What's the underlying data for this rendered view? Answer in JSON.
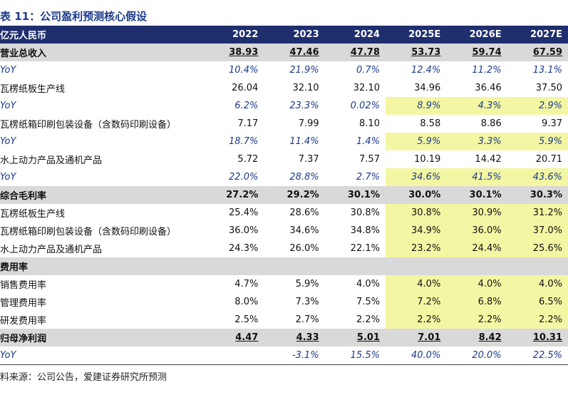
{
  "title": "表 11：公司盈利预测核心假设",
  "table": {
    "header": [
      "亿元人民币",
      "2022",
      "2023",
      "2024",
      "2025E",
      "2026E",
      "2027E"
    ],
    "rows": [
      {
        "kind": "total",
        "label": "营业总收入",
        "values": [
          "38.93",
          "47.46",
          "47.78",
          "53.73",
          "59.74",
          "67.59"
        ],
        "underline": true,
        "highlight": false
      },
      {
        "kind": "yoy",
        "label": "YoY",
        "values": [
          "10.4%",
          "21.9%",
          "0.7%",
          "12.4%",
          "11.2%",
          "13.1%"
        ],
        "highlight": false
      },
      {
        "kind": "item",
        "label": "瓦楞纸板生产线",
        "values": [
          "26.04",
          "32.10",
          "32.10",
          "34.96",
          "36.46",
          "37.50"
        ],
        "highlight": false
      },
      {
        "kind": "yoy",
        "label": "YoY",
        "values": [
          "6.2%",
          "23.3%",
          "0.02%",
          "8.9%",
          "4.3%",
          "2.9%"
        ],
        "highlight": true
      },
      {
        "kind": "item",
        "label": "瓦楞纸箱印刷包装设备（含数码印刷设备）",
        "values": [
          "7.17",
          "7.99",
          "8.10",
          "8.58",
          "8.86",
          "9.37"
        ],
        "highlight": false
      },
      {
        "kind": "yoy",
        "label": "YoY",
        "values": [
          "18.7%",
          "11.4%",
          "1.4%",
          "5.9%",
          "3.3%",
          "5.9%"
        ],
        "highlight": true
      },
      {
        "kind": "item",
        "label": "水上动力产品及通机产品",
        "values": [
          "5.72",
          "7.37",
          "7.57",
          "10.19",
          "14.42",
          "20.71"
        ],
        "highlight": false
      },
      {
        "kind": "yoy",
        "label": "YoY",
        "values": [
          "22.0%",
          "28.8%",
          "2.7%",
          "34.6%",
          "41.5%",
          "43.6%"
        ],
        "highlight": true
      },
      {
        "kind": "total",
        "label": "综合毛利率",
        "values": [
          "27.2%",
          "29.2%",
          "30.1%",
          "30.0%",
          "30.1%",
          "30.3%"
        ],
        "underline": false,
        "highlight": false
      },
      {
        "kind": "item",
        "label": "瓦楞纸板生产线",
        "values": [
          "25.4%",
          "28.6%",
          "30.8%",
          "30.8%",
          "30.9%",
          "31.2%"
        ],
        "highlight": true
      },
      {
        "kind": "item",
        "label": "瓦楞纸箱印刷包装设备（含数码印刷设备）",
        "values": [
          "36.0%",
          "34.6%",
          "34.8%",
          "34.9%",
          "36.0%",
          "37.0%"
        ],
        "highlight": true
      },
      {
        "kind": "item",
        "label": "水上动力产品及通机产品",
        "values": [
          "24.3%",
          "26.0%",
          "22.1%",
          "23.2%",
          "24.4%",
          "25.6%"
        ],
        "highlight": true
      },
      {
        "kind": "total",
        "label": "费用率",
        "values": [
          null,
          null,
          null,
          null,
          null,
          null
        ],
        "underline": false,
        "highlight": false
      },
      {
        "kind": "item",
        "label": "销售费用率",
        "values": [
          "4.7%",
          "5.9%",
          "4.0%",
          "4.0%",
          "4.0%",
          "4.0%"
        ],
        "highlight": true
      },
      {
        "kind": "item",
        "label": "管理费用率",
        "values": [
          "8.0%",
          "7.3%",
          "7.5%",
          "7.2%",
          "6.8%",
          "6.5%"
        ],
        "highlight": true
      },
      {
        "kind": "item",
        "label": "研发费用率",
        "values": [
          "2.5%",
          "2.7%",
          "2.2%",
          "2.2%",
          "2.2%",
          "2.2%"
        ],
        "highlight": true
      },
      {
        "kind": "total",
        "label": "归母净利润",
        "values": [
          "4.47",
          "4.33",
          "5.01",
          "7.01",
          "8.42",
          "10.31"
        ],
        "underline": true,
        "highlight": false
      },
      {
        "kind": "yoy",
        "label": "YoY",
        "values": [
          null,
          "-3.1%",
          "15.5%",
          "40.0%",
          "20.0%",
          "22.5%"
        ],
        "highlight": false
      }
    ]
  },
  "source": "料来源：公司公告，爱建证券研究所预测"
}
